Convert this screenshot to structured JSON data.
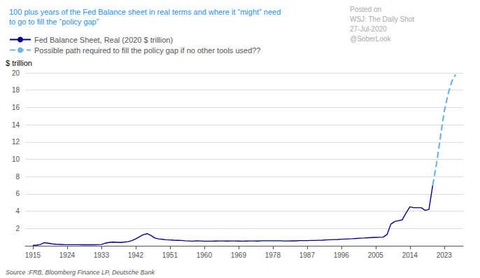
{
  "chart_data": {
    "type": "line",
    "title": "100 plus years of the Fed Balance sheet in real terms and where it “might” need",
    "subtitle": "to go to fill the “policy gap”",
    "title_color": "#1E90FF",
    "y_label": "$ trillion",
    "annotations": [
      "Posted on",
      "WSJ: The Daily Shot",
      "27-Jul-2020",
      "@SoberLook",
      "Source :FRB, Bloomberg Finance LP, Deutsche Bank"
    ],
    "legend": "top left",
    "grid": true,
    "xlim": [
      1913,
      2028
    ],
    "xticks": [
      1915,
      1924,
      1933,
      1942,
      1951,
      1960,
      1969,
      1978,
      1987,
      1996,
      2005,
      2014,
      2023
    ],
    "ylim": [
      0,
      20
    ],
    "yticks": [
      2,
      4,
      6,
      8,
      10,
      12,
      14,
      16,
      18,
      20
    ],
    "series": [
      {
        "name": "Fed Balance Sheet, Real (2020 $ trillion)",
        "color": "#00008B",
        "line_style": "solid",
        "x": [
          1915,
          1916,
          1917,
          1918,
          1919,
          1920,
          1921,
          1922,
          1923,
          1924,
          1925,
          1926,
          1927,
          1928,
          1929,
          1930,
          1931,
          1932,
          1933,
          1934,
          1935,
          1936,
          1937,
          1938,
          1939,
          1940,
          1941,
          1942,
          1943,
          1944,
          1945,
          1946,
          1947,
          1948,
          1949,
          1950,
          1951,
          1952,
          1953,
          1954,
          1955,
          1956,
          1957,
          1958,
          1959,
          1960,
          1961,
          1962,
          1963,
          1964,
          1965,
          1966,
          1967,
          1968,
          1969,
          1970,
          1971,
          1972,
          1973,
          1974,
          1975,
          1976,
          1977,
          1978,
          1979,
          1980,
          1981,
          1982,
          1983,
          1984,
          1985,
          1986,
          1987,
          1988,
          1989,
          1990,
          1991,
          1992,
          1993,
          1994,
          1995,
          1996,
          1997,
          1998,
          1999,
          2000,
          2001,
          2002,
          2003,
          2004,
          2005,
          2006,
          2007,
          2008,
          2009,
          2010,
          2011,
          2012,
          2013,
          2014,
          2015,
          2016,
          2017,
          2018,
          2019,
          2020
        ],
        "values": [
          0.05,
          0.08,
          0.15,
          0.35,
          0.3,
          0.22,
          0.18,
          0.16,
          0.14,
          0.13,
          0.13,
          0.13,
          0.13,
          0.12,
          0.12,
          0.12,
          0.12,
          0.13,
          0.15,
          0.3,
          0.38,
          0.42,
          0.4,
          0.38,
          0.42,
          0.48,
          0.6,
          0.8,
          1.05,
          1.28,
          1.4,
          1.2,
          0.9,
          0.8,
          0.75,
          0.7,
          0.68,
          0.65,
          0.63,
          0.62,
          0.58,
          0.56,
          0.54,
          0.58,
          0.56,
          0.54,
          0.54,
          0.54,
          0.55,
          0.56,
          0.56,
          0.55,
          0.56,
          0.56,
          0.55,
          0.54,
          0.55,
          0.56,
          0.56,
          0.55,
          0.58,
          0.58,
          0.58,
          0.58,
          0.58,
          0.58,
          0.56,
          0.56,
          0.57,
          0.57,
          0.6,
          0.6,
          0.6,
          0.62,
          0.62,
          0.64,
          0.65,
          0.68,
          0.7,
          0.72,
          0.73,
          0.76,
          0.78,
          0.8,
          0.82,
          0.85,
          0.88,
          0.9,
          0.93,
          0.95,
          0.97,
          0.98,
          1.0,
          1.3,
          2.5,
          2.8,
          2.9,
          3.0,
          3.8,
          4.5,
          4.4,
          4.4,
          4.4,
          4.1,
          4.2,
          7.0
        ]
      },
      {
        "name": "Possible path required to fill the policy gap if no other tools used??",
        "color": "#6EB4E8",
        "line_style": "dashed",
        "x": [
          2020,
          2021,
          2022,
          2023,
          2024,
          2025,
          2026
        ],
        "values": [
          7.0,
          9.5,
          12.5,
          15.5,
          17.5,
          19.0,
          19.8
        ]
      }
    ]
  }
}
